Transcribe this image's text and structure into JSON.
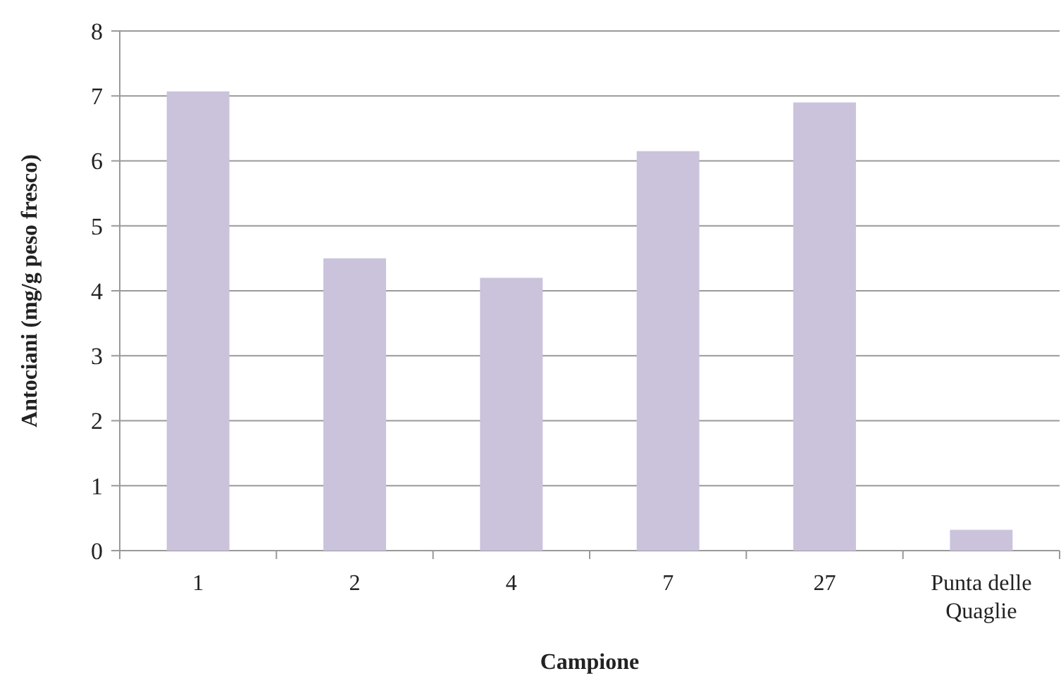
{
  "chart_data": {
    "type": "bar",
    "xlabel": "Campione",
    "ylabel": "Antociani (mg/g peso fresco)",
    "categories": [
      "1",
      "2",
      "4",
      "7",
      "27",
      "Punta delle Quaglie"
    ],
    "values": [
      7.07,
      4.5,
      4.2,
      6.15,
      6.9,
      0.32
    ],
    "color": "#cbc3dc",
    "ylim": [
      0,
      8
    ],
    "yticks": [
      0,
      1,
      2,
      3,
      4,
      5,
      6,
      7,
      8
    ],
    "grid": "y"
  }
}
